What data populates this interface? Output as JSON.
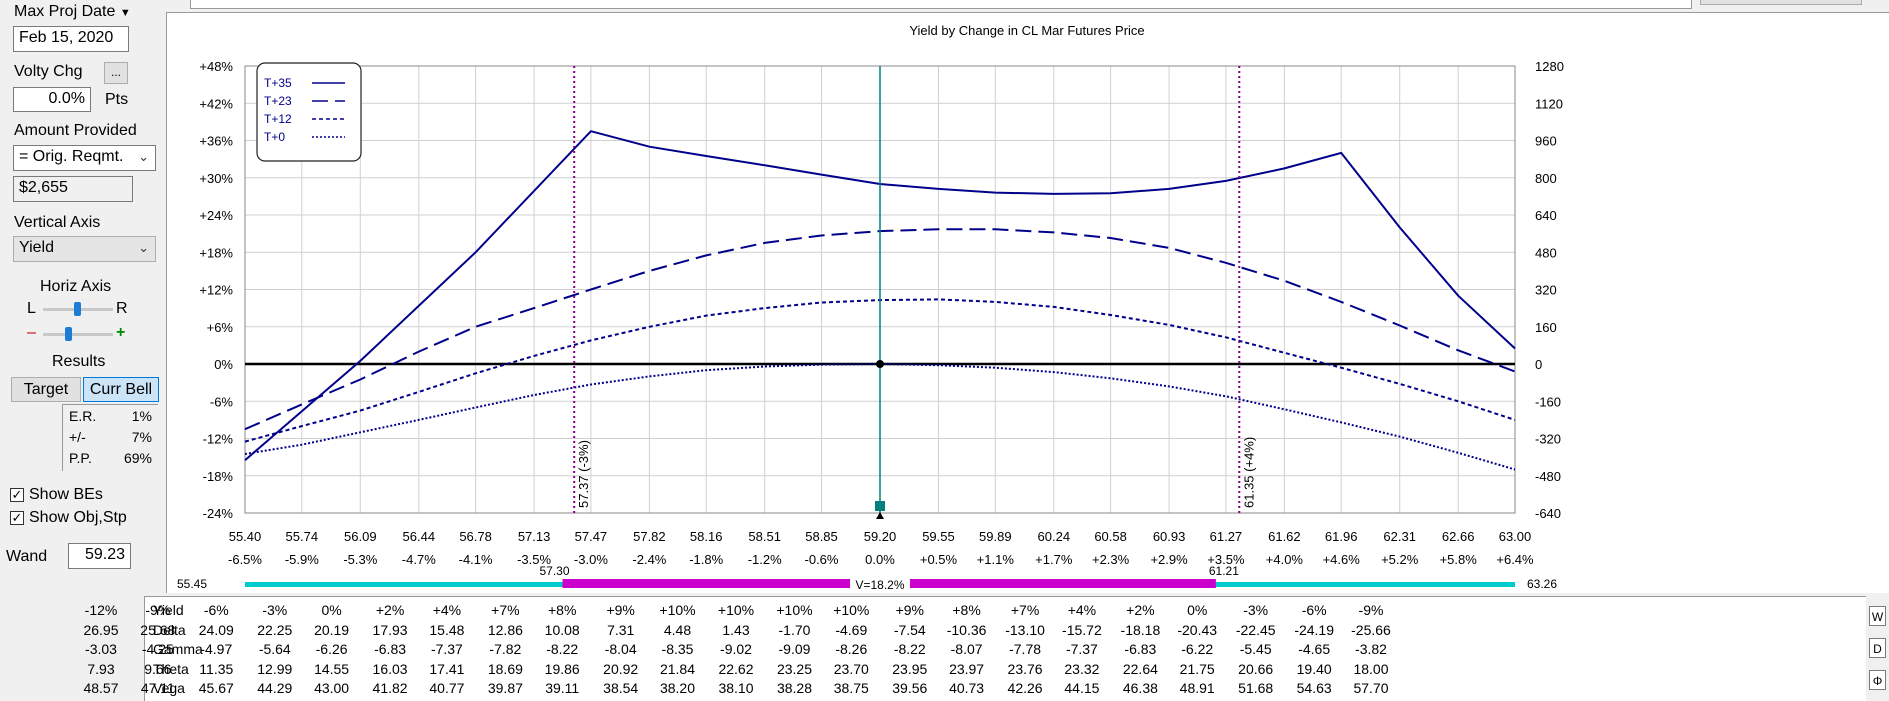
{
  "left": {
    "max_proj_date_label": "Max Proj Date",
    "max_proj_date_value": "Feb 15, 2020",
    "volty_chg_label": "Volty Chg",
    "volty_chg_btn": "...",
    "volty_chg_value": "0.0%",
    "volty_chg_unit": "Pts",
    "amount_label": "Amount Provided",
    "amount_select": "= Orig. Reqmt.",
    "amount_value": "$2,655",
    "vertical_axis_label": "Vertical Axis",
    "vertical_axis_value": "Yield",
    "horiz_axis_label": "Horiz Axis",
    "horiz_l": "L",
    "horiz_r": "R",
    "horiz_minus": "–",
    "horiz_plus": "+",
    "results_label": "Results",
    "tab_target": "Target",
    "tab_curr_bell": "Curr Bell",
    "er_label": "E.R.",
    "er_value": "1%",
    "pm_label": "+/-",
    "pm_value": "7%",
    "pp_label": "P.P.",
    "pp_value": "69%",
    "show_bes": "Show BEs",
    "show_obj": "Show Obj,Stp",
    "wand_label": "Wand",
    "wand_value": "59.23"
  },
  "chart_data": {
    "type": "line",
    "title": "Yield by Change in CL Mar Futures Price",
    "x": [
      55.4,
      55.74,
      56.09,
      56.44,
      56.78,
      57.13,
      57.47,
      57.82,
      58.16,
      58.51,
      58.85,
      59.2,
      59.55,
      59.89,
      60.24,
      60.58,
      60.93,
      61.27,
      61.62,
      61.96,
      62.31,
      62.66,
      63.0
    ],
    "x_labels": [
      "55.40",
      "55.74",
      "56.09",
      "56.44",
      "56.78",
      "57.13",
      "57.47",
      "57.82",
      "58.16",
      "58.51",
      "58.85",
      "59.20",
      "59.55",
      "59.89",
      "60.24",
      "60.58",
      "60.93",
      "61.27",
      "61.62",
      "61.96",
      "62.31",
      "62.66",
      "63.00"
    ],
    "x_pct_labels": [
      "-6.5%",
      "-5.9%",
      "-5.3%",
      "-4.7%",
      "-4.1%",
      "-3.5%",
      "-3.0%",
      "-2.4%",
      "-1.8%",
      "-1.2%",
      "-0.6%",
      "0.0%",
      "+0.5%",
      "+1.1%",
      "+1.7%",
      "+2.3%",
      "+2.9%",
      "+3.5%",
      "+4.0%",
      "+4.6%",
      "+5.2%",
      "+5.8%",
      "+6.4%"
    ],
    "y_left_ticks": [
      "+48%",
      "+42%",
      "+36%",
      "+30%",
      "+24%",
      "+18%",
      "+12%",
      "+6%",
      "0%",
      "-6%",
      "-12%",
      "-18%",
      "-24%"
    ],
    "y_right_ticks": [
      "1280",
      "1120",
      "960",
      "800",
      "640",
      "480",
      "320",
      "160",
      "0",
      "-160",
      "-320",
      "-480",
      "-640"
    ],
    "ylim": [
      -24,
      48
    ],
    "series": [
      {
        "name": "T+35",
        "dash": "solid",
        "x": [
          55.4,
          56.09,
          56.78,
          57.47,
          57.82,
          58.16,
          58.51,
          58.85,
          59.2,
          59.55,
          59.89,
          60.24,
          60.58,
          60.93,
          61.27,
          61.62,
          61.96,
          62.31,
          62.66,
          63.0
        ],
        "y": [
          -15.5,
          0.5,
          18,
          37.5,
          35,
          33.5,
          32,
          30.5,
          29,
          28.2,
          27.6,
          27.4,
          27.5,
          28.2,
          29.5,
          31.5,
          34,
          22,
          11,
          2.5
        ]
      },
      {
        "name": "T+23",
        "dash": "long",
        "x": [
          55.4,
          55.74,
          56.09,
          56.44,
          56.78,
          57.13,
          57.47,
          57.82,
          58.16,
          58.51,
          58.85,
          59.2,
          59.55,
          59.89,
          60.24,
          60.58,
          60.93,
          61.27,
          61.62,
          61.96,
          62.31,
          62.66,
          63.0
        ],
        "y": [
          -10.5,
          -6.5,
          -2.5,
          2,
          6,
          9,
          12,
          15,
          17.5,
          19.5,
          20.7,
          21.4,
          21.7,
          21.7,
          21.2,
          20.3,
          18.7,
          16.3,
          13.4,
          10,
          6.2,
          2.2,
          -1.2
        ]
      },
      {
        "name": "T+12",
        "dash": "short",
        "x": [
          55.4,
          55.74,
          56.09,
          56.44,
          56.78,
          57.13,
          57.47,
          57.82,
          58.16,
          58.51,
          58.85,
          59.2,
          59.55,
          59.89,
          60.24,
          60.58,
          60.93,
          61.27,
          61.62,
          61.96,
          62.31,
          62.66,
          63.0
        ],
        "y": [
          -12.5,
          -10,
          -7.5,
          -4.5,
          -1.5,
          1.3,
          3.8,
          6,
          7.8,
          9,
          9.9,
          10.3,
          10.4,
          10,
          9.2,
          7.9,
          6.3,
          4.3,
          1.8,
          -0.6,
          -3.2,
          -6,
          -9
        ]
      },
      {
        "name": "T+0",
        "dash": "dot",
        "x": [
          55.4,
          55.74,
          56.09,
          56.44,
          56.78,
          57.13,
          57.47,
          57.82,
          58.16,
          58.51,
          58.85,
          59.2,
          59.55,
          59.89,
          60.24,
          60.58,
          60.93,
          61.27,
          61.62,
          61.96,
          62.31,
          62.66,
          63.0
        ],
        "y": [
          -14.5,
          -13,
          -11,
          -9,
          -7,
          -5,
          -3.3,
          -2,
          -1,
          -0.4,
          -0.1,
          0,
          -0.2,
          -0.6,
          -1.3,
          -2.3,
          -3.6,
          -5.2,
          -7.3,
          -9.4,
          -11.7,
          -14.3,
          -17
        ]
      }
    ],
    "markers": {
      "left_label": "57.37 (-3%)",
      "left_x": 57.37,
      "right_label": "61.35 (+4%)",
      "right_x": 61.35,
      "center_x": 59.2
    },
    "range_bar": {
      "left_end": "55.45",
      "right_end": "63.26",
      "inner_left": "57.30",
      "inner_right": "61.21",
      "center_label": "V=18.2%"
    },
    "colors": {
      "series": "#00008b",
      "marker": "#800080",
      "center": "#008080",
      "range_outer": "#00cccc",
      "range_inner": "#cc00cc"
    }
  },
  "table": {
    "row_labels": [
      "Yield",
      "Delta",
      "Gamma",
      "Theta",
      "Vega"
    ],
    "rows": [
      [
        "-12%",
        "-9%",
        "-6%",
        "-3%",
        "0%",
        "+2%",
        "+4%",
        "+7%",
        "+8%",
        "+9%",
        "+10%",
        "+10%",
        "+10%",
        "+10%",
        "+9%",
        "+8%",
        "+7%",
        "+4%",
        "+2%",
        "0%",
        "-3%",
        "-6%",
        "-9%"
      ],
      [
        "26.95",
        "25.68",
        "24.09",
        "22.25",
        "20.19",
        "17.93",
        "15.48",
        "12.86",
        "10.08",
        "7.31",
        "4.48",
        "1.43",
        "-1.70",
        "-4.69",
        "-7.54",
        "-10.36",
        "-13.10",
        "-15.72",
        "-18.18",
        "-20.43",
        "-22.45",
        "-24.19",
        "-25.66"
      ],
      [
        "-3.03",
        "-4.25",
        "-4.97",
        "-5.64",
        "-6.26",
        "-6.83",
        "-7.37",
        "-7.82",
        "-8.22",
        "-8.04",
        "-8.35",
        "-9.02",
        "-9.09",
        "-8.26",
        "-8.22",
        "-8.07",
        "-7.78",
        "-7.37",
        "-6.83",
        "-6.22",
        "-5.45",
        "-4.65",
        "-3.82"
      ],
      [
        "7.93",
        "9.66",
        "11.35",
        "12.99",
        "14.55",
        "16.03",
        "17.41",
        "18.69",
        "19.86",
        "20.92",
        "21.84",
        "22.62",
        "23.25",
        "23.70",
        "23.95",
        "23.97",
        "23.76",
        "23.32",
        "22.64",
        "21.75",
        "20.66",
        "19.40",
        "18.00"
      ],
      [
        "48.57",
        "47.11",
        "45.67",
        "44.29",
        "43.00",
        "41.82",
        "40.77",
        "39.87",
        "39.11",
        "38.54",
        "38.20",
        "38.10",
        "38.28",
        "38.75",
        "39.56",
        "40.73",
        "42.26",
        "44.15",
        "46.38",
        "48.91",
        "51.68",
        "54.63",
        "57.70"
      ]
    ],
    "side_buttons": [
      "W",
      "D",
      "Φ"
    ]
  }
}
